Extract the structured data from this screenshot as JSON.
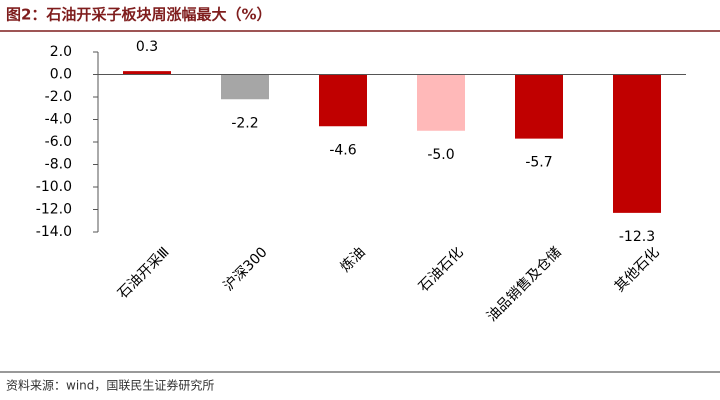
{
  "chart_data": {
    "type": "bar",
    "title": "图2：石油开采子板块周涨幅最大（%）",
    "source": "资料来源：wind，国联民生证券研究所",
    "categories": [
      "石油开采Ⅲ",
      "沪深300",
      "炼油",
      "石油石化",
      "油品销售及仓储",
      "其他石化"
    ],
    "values": [
      0.3,
      -2.2,
      -4.6,
      -5.0,
      -5.7,
      -12.3
    ],
    "value_labels": [
      "0.3",
      "-2.2",
      "-4.6",
      "-5.0",
      "-5.7",
      "-12.3"
    ],
    "colors": [
      "#c00000",
      "#a6a6a6",
      "#c00000",
      "#ffb9b9",
      "#c00000",
      "#c00000"
    ],
    "ylim": [
      -14,
      2
    ],
    "yticks": [
      {
        "value": 2,
        "label": "2.0"
      },
      {
        "value": 0,
        "label": "0.0"
      },
      {
        "value": -2,
        "label": "-2.0"
      },
      {
        "value": -4,
        "label": "-4.0"
      },
      {
        "value": -6,
        "label": "-6.0"
      },
      {
        "value": -8,
        "label": "-8.0"
      },
      {
        "value": -10,
        "label": "-10.0"
      },
      {
        "value": -12,
        "label": "-12.0"
      },
      {
        "value": -14,
        "label": "-14.0"
      }
    ]
  }
}
